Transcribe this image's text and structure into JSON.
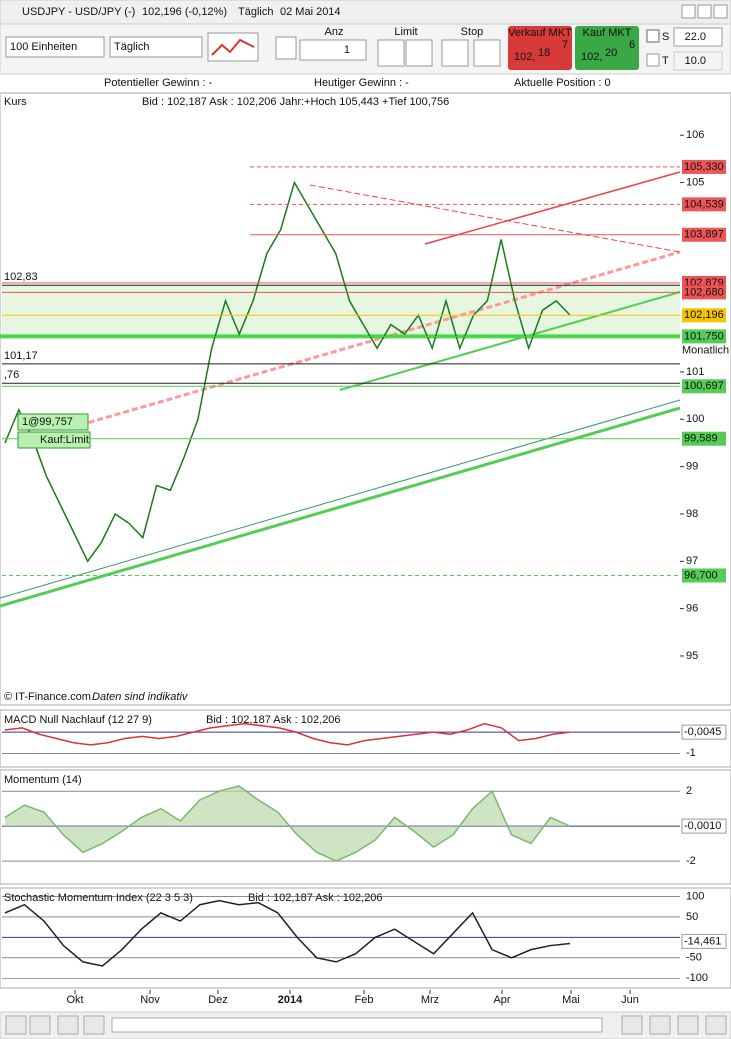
{
  "title_bar": {
    "symbol": "USDJPY - USD/JPY (-)",
    "price": "102,196 (-0,12%)",
    "period": "Täglich",
    "date": "02 Mai 2014"
  },
  "toolbar": {
    "quantity": "100 Einheiten",
    "period": "Täglich",
    "anz_label": "Anz",
    "anz_value": "1",
    "limit_label": "Limit",
    "stop_label": "Stop",
    "sell": {
      "label": "Verkauf MKT",
      "prefix": "102,",
      "main": "18",
      "sup": "7"
    },
    "buy": {
      "label": "Kauf MKT",
      "prefix": "102,",
      "main": "20",
      "sup": "6"
    },
    "s_label": "S",
    "s_value": "22.0",
    "t_label": "T",
    "t_value": "10.0"
  },
  "status": {
    "potential": "Potentieller Gewinn : -",
    "today": "Heutiger Gewinn : -",
    "position": "Aktuelle Position : 0"
  },
  "price_panel": {
    "name": "Kurs",
    "info": "Bid : 102,187 Ask : 102,206 Jahr:+Hoch 105,443 +Tief 100,756",
    "ylim": [
      94.07,
      106.49
    ],
    "yticks": [
      95,
      96,
      97,
      98,
      99,
      100,
      101,
      105,
      106
    ],
    "closes": [
      99.5,
      100.2,
      99.6,
      98.8,
      98.2,
      97.6,
      97.0,
      97.4,
      98.0,
      97.8,
      97.5,
      98.6,
      98.5,
      99.2,
      100.0,
      101.5,
      102.5,
      101.8,
      102.5,
      103.5,
      104.0,
      105.0,
      104.5,
      104.0,
      103.5,
      102.5,
      102.0,
      101.5,
      102.0,
      101.8,
      102.2,
      101.5,
      102.5,
      101.5,
      102.2,
      102.5,
      103.8,
      102.5,
      101.5,
      102.3,
      102.5,
      102.2
    ],
    "price_labels": [
      {
        "value": 105.33,
        "label": "105,330"
      },
      {
        "value": 104.539,
        "label": "104,539"
      },
      {
        "value": 103.897,
        "label": "103,897"
      },
      {
        "value": 102.879,
        "label": "102,879"
      },
      {
        "value": 102.68,
        "label": "102,680"
      },
      {
        "value": 102.196,
        "label": "102,196"
      },
      {
        "value": 101.75,
        "label": "101,750"
      },
      {
        "value": 100.697,
        "label": "100,697"
      },
      {
        "value": 99.589,
        "label": "99,589"
      },
      {
        "value": 96.7,
        "label": "96,700"
      }
    ],
    "monthly": "Monatlich",
    "left_labels": [
      {
        "value": 102.83,
        "label": "102,83"
      },
      {
        "value": 101.17,
        "label": "101,17"
      },
      {
        "value": 100.76,
        "label": ",76"
      }
    ],
    "order_label": "1@99,757",
    "order_type": "Kauf:Limit",
    "footer_brand": "© IT-Finance.com",
    "footer_note": "Daten sind indikativ"
  },
  "macd_panel": {
    "name": "MACD Null Nachlauf (12 27 9)",
    "info": "Bid : 102,187 Ask : 102,206",
    "value_label": "-0,0045",
    "ylim": [
      -1.55,
      0.95
    ],
    "yticks": [
      -1
    ],
    "values": [
      0.1,
      0.2,
      -0.1,
      -0.3,
      -0.5,
      -0.6,
      -0.5,
      -0.3,
      -0.2,
      -0.3,
      -0.2,
      0.0,
      0.2,
      0.3,
      0.4,
      0.3,
      0.2,
      0.0,
      -0.3,
      -0.5,
      -0.6,
      -0.4,
      -0.3,
      -0.2,
      -0.1,
      0.0,
      -0.1,
      0.1,
      0.4,
      0.2,
      -0.4,
      -0.3,
      -0.1,
      0.0
    ]
  },
  "momentum_panel": {
    "name": "Momentum (14)",
    "value_label": "-0,0010",
    "ylim": [
      -3.2,
      3.1
    ],
    "yticks": [
      2,
      -2
    ],
    "values": [
      0.5,
      1.2,
      0.8,
      -0.5,
      -1.5,
      -1.0,
      -0.3,
      0.5,
      1.0,
      0.3,
      1.5,
      2.0,
      2.3,
      1.5,
      0.8,
      -0.5,
      -1.5,
      -2.0,
      -1.5,
      -0.8,
      0.5,
      -0.3,
      -1.2,
      -0.5,
      1.0,
      2.0,
      -0.5,
      -1.0,
      0.5,
      0.0
    ]
  },
  "stochastic_panel": {
    "name": "Stochastic Momentum Index (22 3 5 3)",
    "info": "Bid : 102,187 Ask : 102,206",
    "value_label": "-14,461",
    "ylim": [
      -119,
      116
    ],
    "yticks": [
      100,
      50,
      -50,
      -100
    ],
    "values": [
      60,
      80,
      40,
      -20,
      -60,
      -70,
      -30,
      20,
      60,
      40,
      80,
      90,
      80,
      85,
      60,
      0,
      -50,
      -60,
      -40,
      0,
      20,
      -10,
      -40,
      10,
      60,
      -30,
      -50,
      -30,
      -20,
      -15
    ]
  },
  "x_axis": [
    "Okt",
    "Nov",
    "Dez",
    "2014",
    "Feb",
    "Mrz",
    "Apr",
    "Mai",
    "Jun"
  ]
}
